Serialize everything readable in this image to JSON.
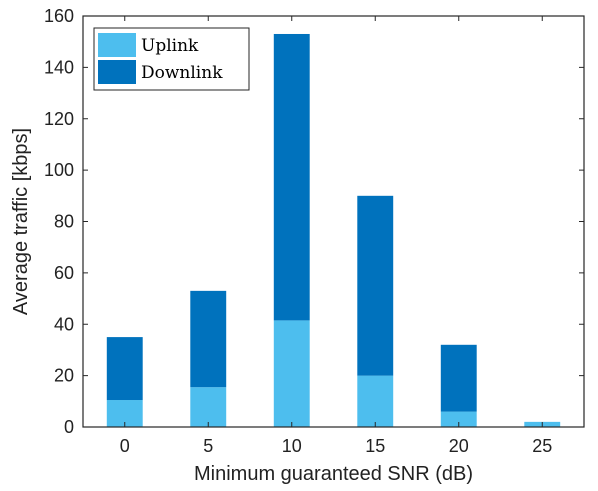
{
  "chart_data": {
    "type": "bar",
    "stacked": true,
    "categories": [
      "0",
      "5",
      "10",
      "15",
      "20",
      "25"
    ],
    "series": [
      {
        "name": "Uplink",
        "color": "#4DBEEE",
        "values": [
          10.5,
          15.5,
          41.5,
          20,
          6,
          2
        ]
      },
      {
        "name": "Downlink",
        "color": "#0072BD",
        "values": [
          24.5,
          37.5,
          111.5,
          70,
          26,
          0
        ]
      }
    ],
    "xlabel": "Minimum guaranteed SNR (dB)",
    "ylabel": "Average traffic [kbps]",
    "ylim": [
      0,
      160
    ],
    "yticks": [
      0,
      20,
      40,
      60,
      80,
      100,
      120,
      140,
      160
    ],
    "grid": false,
    "legend_position": "top-left"
  }
}
